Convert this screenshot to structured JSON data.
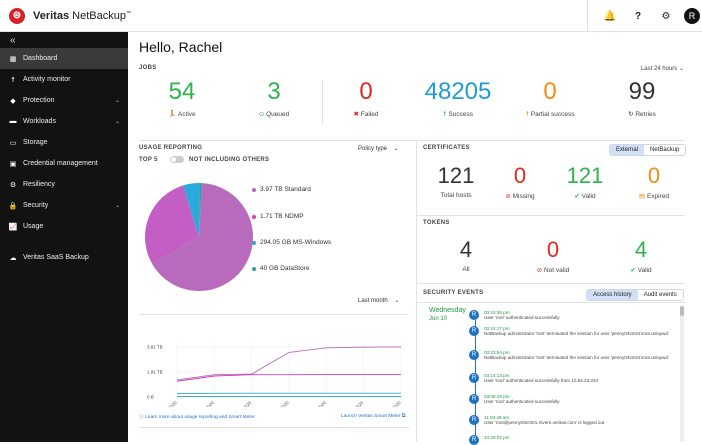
{
  "app": {
    "brand_bold": "Veritas",
    "brand_rest": " NetBackup",
    "brand_tm": "™",
    "logo_glyph": "⊜",
    "user_initial": "R"
  },
  "topbar_icons": [
    "bell-icon",
    "help-icon",
    "gear-icon"
  ],
  "sidebar": {
    "collapse": "«",
    "items": [
      {
        "label": "Dashboard",
        "icon": "▦",
        "active": true,
        "chevron": false
      },
      {
        "label": "Activity monitor",
        "icon": "☨",
        "active": false,
        "chevron": false
      },
      {
        "label": "Protection",
        "icon": "◆",
        "active": false,
        "chevron": true
      },
      {
        "label": "Workloads",
        "icon": "▬",
        "active": false,
        "chevron": true
      },
      {
        "label": "Storage",
        "icon": "▭",
        "active": false,
        "chevron": false
      },
      {
        "label": "Credential management",
        "icon": "▣",
        "active": false,
        "chevron": false
      },
      {
        "label": "Resiliency",
        "icon": "⚙",
        "active": false,
        "chevron": false
      },
      {
        "label": "Security",
        "icon": "🔒",
        "active": false,
        "chevron": true
      },
      {
        "label": "Usage",
        "icon": "📈",
        "active": false,
        "chevron": false
      }
    ],
    "extra_item": {
      "label": "Veritas SaaS Backup",
      "icon": "☁"
    }
  },
  "greeting": "Hello, Rachel",
  "jobs": {
    "title": "JOBS",
    "range": "Last 24 hours",
    "metrics": [
      {
        "value": "54",
        "label": "Active",
        "color": "#2db34a",
        "icon": "🏃"
      },
      {
        "value": "3",
        "label": "Queued",
        "color": "#2db34a",
        "icon": "⊙"
      },
      {
        "value": "0",
        "label": "Failed",
        "color": "#e0281e",
        "icon": "✖"
      },
      {
        "value": "48205",
        "label": "Success",
        "color": "#1f9bd7",
        "icon": "☨"
      },
      {
        "value": "0",
        "label": "Partial success",
        "color": "#f28c12",
        "icon": "☨"
      },
      {
        "value": "99",
        "label": "Retries",
        "color": "#333333",
        "icon": "↻"
      }
    ]
  },
  "usage": {
    "title": "USAGE REPORTING",
    "policy_type": "Policy type",
    "top5": "TOP 5",
    "not_including": "NOT INCLUDING OTHERS",
    "legend": [
      {
        "label": "3.97 TB  Standard",
        "color": "#b86bbd"
      },
      {
        "label": "1.71 TB  NDMP",
        "color": "#d23cbe"
      },
      {
        "label": "294.05 GB  MS-Windows",
        "color": "#2aa9dc"
      },
      {
        "label": "40 GB  DataStore",
        "color": "#27a39b"
      }
    ],
    "range": "Last month",
    "footer_link": "Learn more about usage reporting and Smart Meter",
    "launch_link": "Launch Veritas Smart Meter"
  },
  "chart_data": {
    "type": "line",
    "categories": [
      "Jun 4, 2020",
      "Jun 5, 2020",
      "Jun 6, 2020",
      "Jun 7, 2020",
      "Jun 8, 2020",
      "Jun 9, 2020",
      "Jun 10, 2020"
    ],
    "ytick_labels": [
      "3.81 TB",
      "1.91 TB",
      "0 B"
    ],
    "ylim": [
      0,
      3.81
    ],
    "series": [
      {
        "color": "#b86bbd",
        "values": [
          1.3,
          1.7,
          1.75,
          3.4,
          3.75,
          3.8,
          3.81
        ]
      },
      {
        "color": "#d23cbe",
        "values": [
          1.2,
          1.6,
          1.7,
          1.7,
          1.71,
          1.71,
          1.71
        ]
      },
      {
        "color": "#2aa9dc",
        "values": [
          0.25,
          0.28,
          0.29,
          0.29,
          0.29,
          0.29,
          0.29
        ]
      },
      {
        "color": "#27a39b",
        "values": [
          0.03,
          0.04,
          0.04,
          0.04,
          0.04,
          0.04,
          0.04
        ]
      }
    ],
    "pie": {
      "slices": [
        {
          "label": "Standard",
          "value": 3.97,
          "color": "#b86bbd"
        },
        {
          "label": "NDMP",
          "value": 1.71,
          "color": "#c25ec4"
        },
        {
          "label": "MS-Windows",
          "value": 0.294,
          "color": "#2aa9dc"
        },
        {
          "label": "DataStore",
          "value": 0.04,
          "color": "#27a39b"
        }
      ]
    }
  },
  "certificates": {
    "title": "CERTIFICATES",
    "tabs": [
      "External",
      "NetBackup"
    ],
    "metrics": [
      {
        "value": "121",
        "label": "Total hosts",
        "color": "#333333",
        "icon": ""
      },
      {
        "value": "0",
        "label": "Missing",
        "color": "#e0281e",
        "icon": "⊘"
      },
      {
        "value": "121",
        "label": "Valid",
        "color": "#2db34a",
        "icon": "✔"
      },
      {
        "value": "0",
        "label": "Expired",
        "color": "#f28c12",
        "icon": "▤"
      }
    ]
  },
  "tokens": {
    "title": "TOKENS",
    "metrics": [
      {
        "value": "4",
        "label": "All",
        "color": "#333333",
        "icon": ""
      },
      {
        "value": "0",
        "label": "Not valid",
        "color": "#e0281e",
        "icon": "⊘"
      },
      {
        "value": "4",
        "label": "Valid",
        "color": "#2db34a",
        "icon": "✔"
      }
    ]
  },
  "security": {
    "title": "SECURITY EVENTS",
    "tabs": [
      "Access history",
      "Audit events"
    ],
    "day": "Wednesday",
    "date": "Jun 10",
    "events": [
      {
        "time": "03:24:36 pm",
        "text": "User 'root' authenticated successfully"
      },
      {
        "time": "03:24:17 pm",
        "text": "NetBackup administrator 'root' terminated the session for user 'penny03vm01\\root.unixpwd'"
      },
      {
        "time": "03:23:54 pm",
        "text": "NetBackup administrator 'root' terminated the session for user 'penny03vm01\\root.unixpwd'"
      },
      {
        "time": "03:14:13 pm",
        "text": "User 'root' authenticated successfully from 10.84.23.224"
      },
      {
        "time": "03:08:29 pm",
        "text": "User 'root' authenticated successfully"
      },
      {
        "time": "11:03:48 am",
        "text": "User 'root@penny03vm01.rsvern.veritas.com' is logged out"
      },
      {
        "time": "10:29:02 pm",
        "text": ""
      }
    ]
  }
}
